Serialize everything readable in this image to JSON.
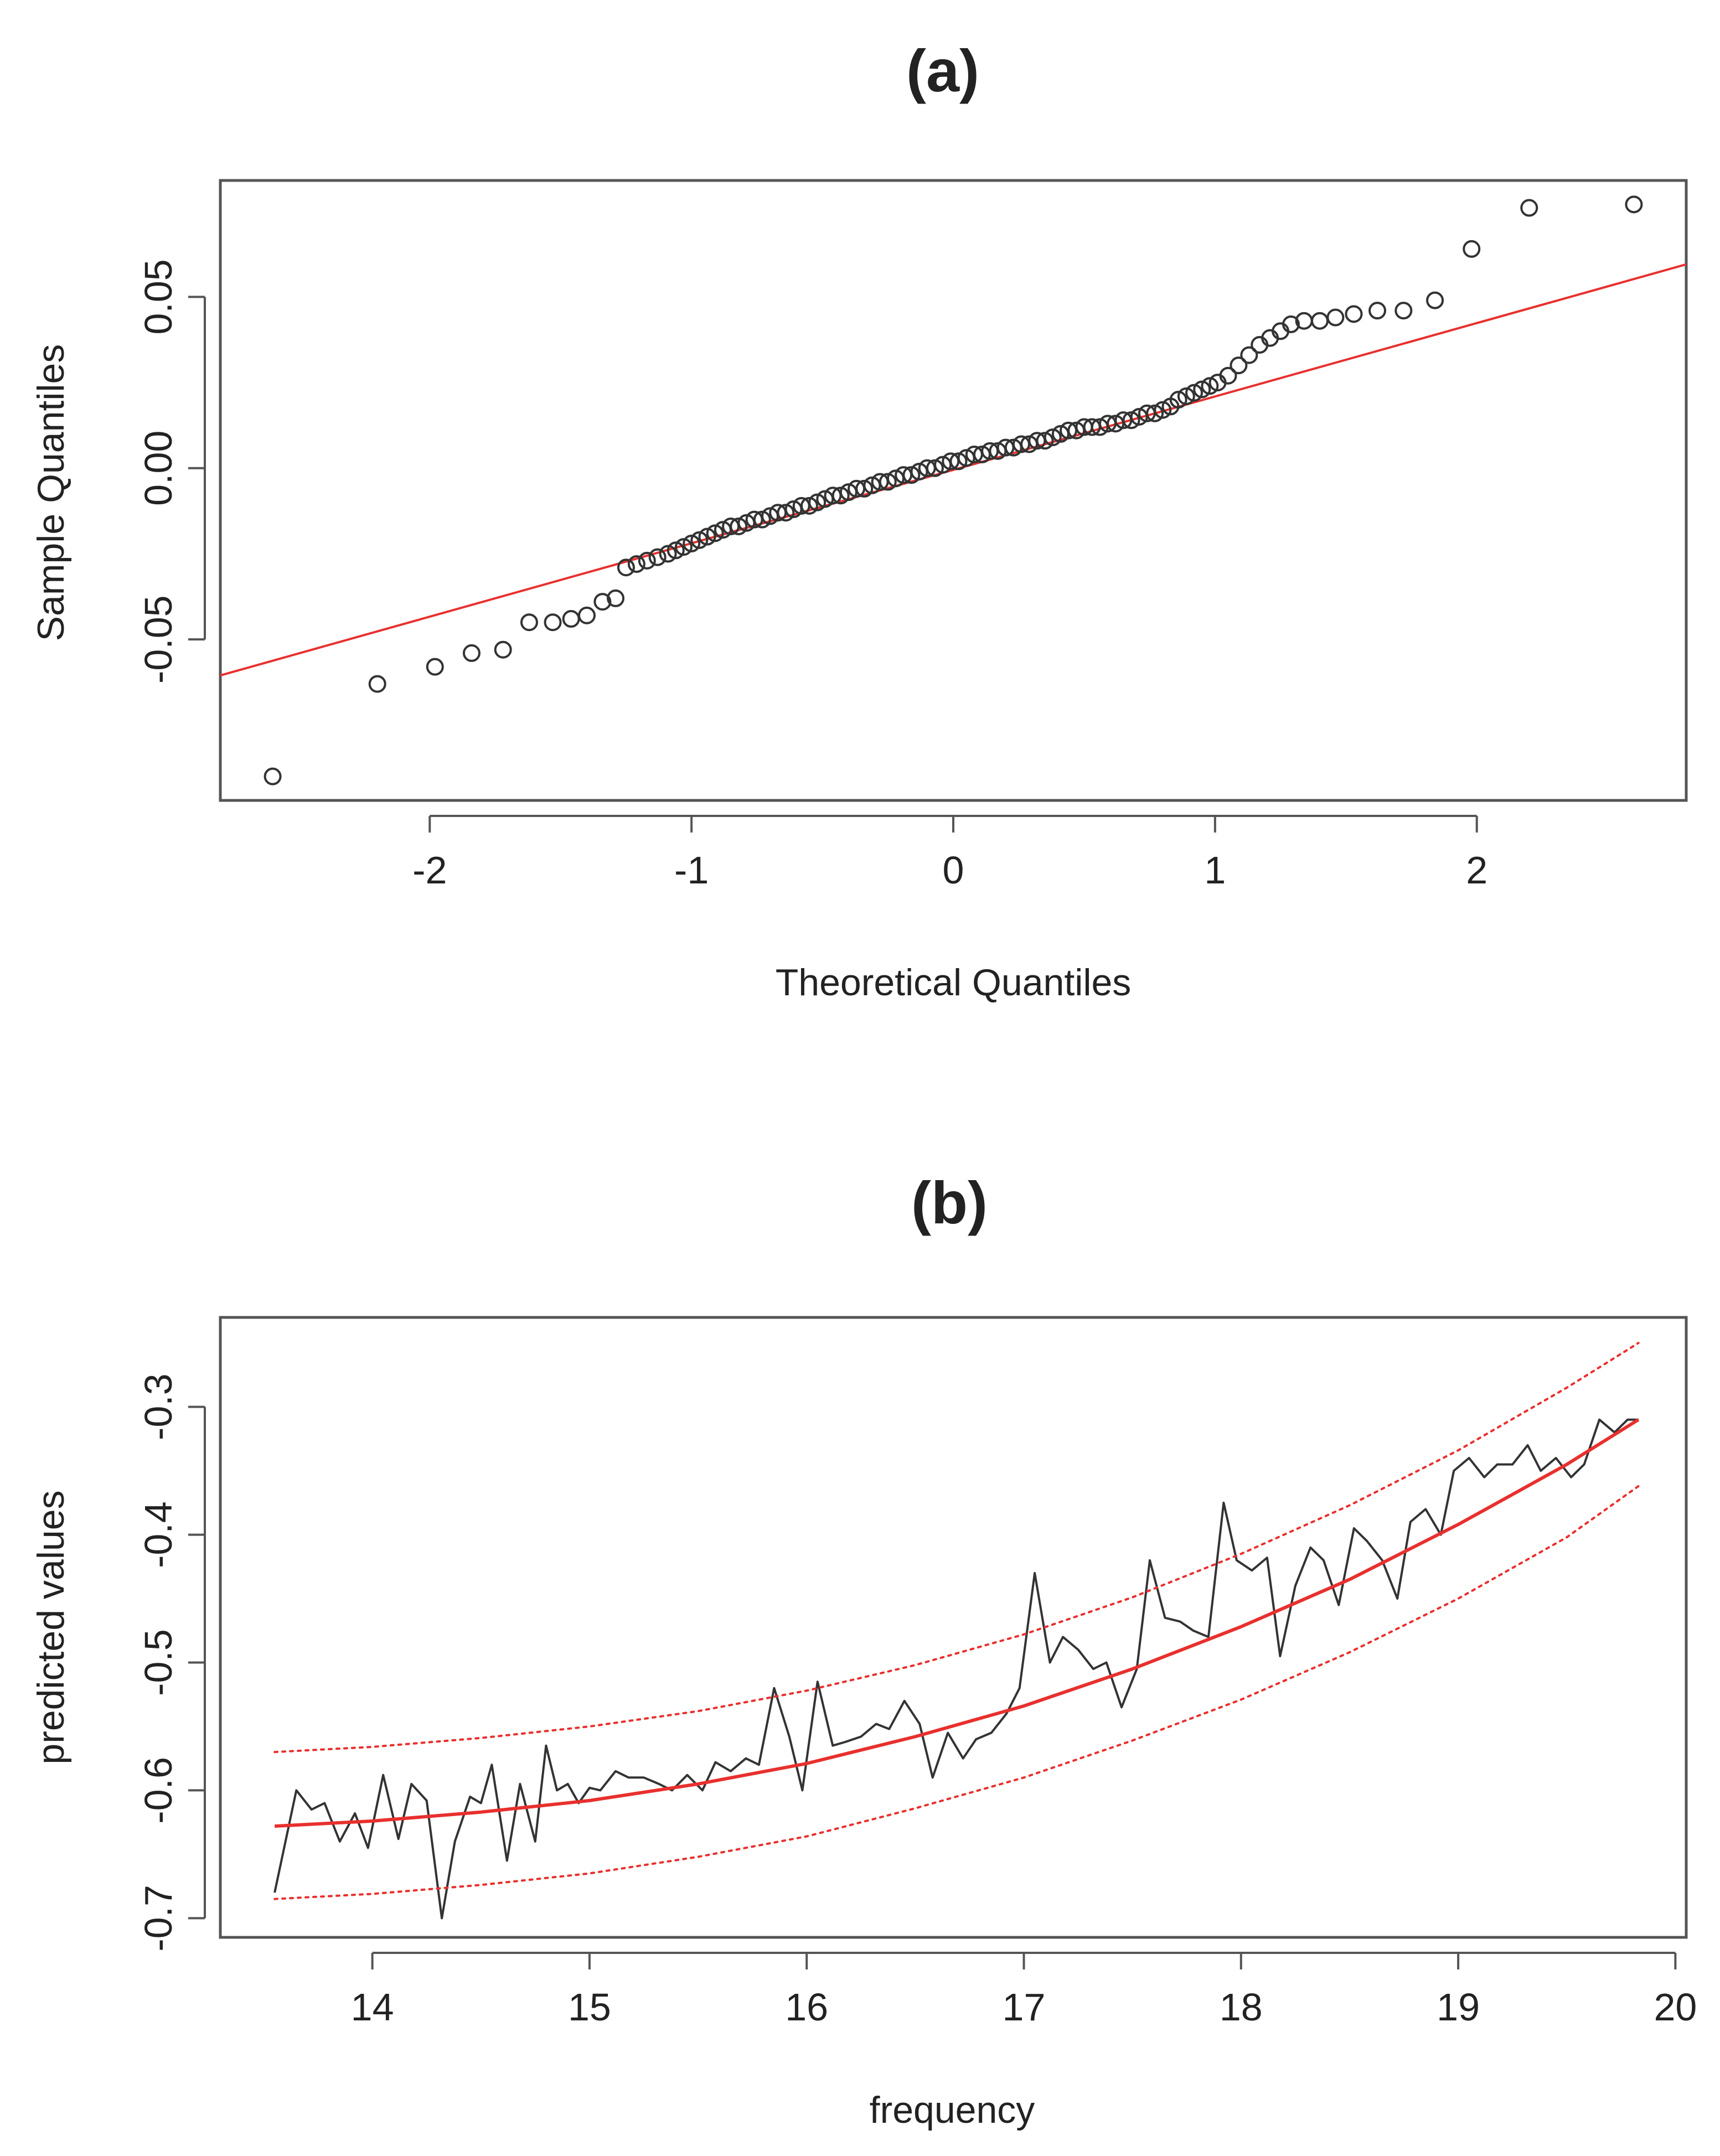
{
  "chart_data": [
    {
      "type": "scatter",
      "panel": "(a)",
      "title": "(a)",
      "xlabel": "Theoretical Quantiles",
      "ylabel": "Sample Quantiles",
      "xlim": [
        -2.8,
        2.8
      ],
      "ylim": [
        -0.097,
        0.084
      ],
      "xticks": [
        -2,
        -1,
        0,
        1,
        2
      ],
      "xtick_labels": [
        "-2",
        "-1",
        "0",
        "1",
        "2"
      ],
      "yticks": [
        -0.05,
        0.0,
        0.05
      ],
      "ytick_labels": [
        "-0.05",
        "0.00",
        "0.05"
      ],
      "grid": false,
      "marker": "open-circle",
      "reference_line": {
        "name": "qqline",
        "color": "#e8302e",
        "x": [
          -2.8,
          2.8
        ],
        "y": [
          -0.0605,
          0.0595
        ]
      },
      "points": {
        "x": [
          -2.6,
          -2.2,
          -1.98,
          -1.84,
          -1.72,
          -1.62,
          -1.53,
          -1.46,
          -1.4,
          -1.34,
          -1.29,
          -1.25,
          -1.21,
          -1.17,
          -1.13,
          -1.09,
          -1.06,
          -1.03,
          -1.0,
          -0.97,
          -0.94,
          -0.91,
          -0.88,
          -0.85,
          -0.82,
          -0.79,
          -0.76,
          -0.73,
          -0.7,
          -0.67,
          -0.64,
          -0.61,
          -0.58,
          -0.55,
          -0.52,
          -0.49,
          -0.46,
          -0.43,
          -0.4,
          -0.37,
          -0.34,
          -0.31,
          -0.28,
          -0.25,
          -0.22,
          -0.19,
          -0.16,
          -0.13,
          -0.1,
          -0.07,
          -0.04,
          -0.01,
          0.02,
          0.05,
          0.08,
          0.11,
          0.14,
          0.17,
          0.2,
          0.23,
          0.26,
          0.29,
          0.32,
          0.35,
          0.38,
          0.41,
          0.44,
          0.47,
          0.5,
          0.53,
          0.56,
          0.59,
          0.62,
          0.65,
          0.68,
          0.71,
          0.74,
          0.77,
          0.8,
          0.83,
          0.86,
          0.89,
          0.92,
          0.95,
          0.98,
          1.01,
          1.05,
          1.09,
          1.13,
          1.17,
          1.21,
          1.25,
          1.29,
          1.34,
          1.4,
          1.46,
          1.53,
          1.62,
          1.72,
          1.84,
          1.98,
          2.2,
          2.6
        ],
        "y": [
          -0.09,
          -0.063,
          -0.058,
          -0.054,
          -0.053,
          -0.045,
          -0.045,
          -0.044,
          -0.043,
          -0.039,
          -0.038,
          -0.029,
          -0.028,
          -0.027,
          -0.026,
          -0.025,
          -0.024,
          -0.023,
          -0.022,
          -0.021,
          -0.02,
          -0.019,
          -0.018,
          -0.017,
          -0.017,
          -0.016,
          -0.015,
          -0.015,
          -0.014,
          -0.013,
          -0.013,
          -0.012,
          -0.011,
          -0.011,
          -0.01,
          -0.009,
          -0.008,
          -0.008,
          -0.007,
          -0.006,
          -0.006,
          -0.005,
          -0.004,
          -0.004,
          -0.003,
          -0.002,
          -0.002,
          -0.001,
          0.0,
          0.0,
          0.001,
          0.002,
          0.002,
          0.003,
          0.004,
          0.004,
          0.005,
          0.005,
          0.006,
          0.006,
          0.007,
          0.007,
          0.008,
          0.008,
          0.009,
          0.01,
          0.011,
          0.011,
          0.012,
          0.012,
          0.012,
          0.013,
          0.013,
          0.014,
          0.014,
          0.015,
          0.016,
          0.016,
          0.017,
          0.018,
          0.02,
          0.021,
          0.022,
          0.023,
          0.024,
          0.025,
          0.027,
          0.03,
          0.033,
          0.036,
          0.038,
          0.04,
          0.042,
          0.043,
          0.043,
          0.044,
          0.045,
          0.046,
          0.046,
          0.049,
          0.064,
          0.076,
          0.077
        ]
      }
    },
    {
      "type": "line",
      "panel": "(b)",
      "title": "(b)",
      "xlabel": "frequency",
      "ylabel": "predicted values",
      "xlim": [
        13.3,
        20.05
      ],
      "ylim": [
        -0.715,
        -0.23
      ],
      "xticks": [
        14,
        15,
        16,
        17,
        18,
        19,
        20
      ],
      "xtick_labels": [
        "14",
        "15",
        "16",
        "17",
        "18",
        "19",
        "20"
      ],
      "yticks": [
        -0.7,
        -0.6,
        -0.5,
        -0.4,
        -0.3
      ],
      "ytick_labels": [
        "-0.7",
        "-0.6",
        "-0.5",
        "-0.4",
        "-0.3"
      ],
      "grid": false,
      "series": [
        {
          "name": "predicted values",
          "color": "#333333",
          "style": "solid",
          "x": [
            13.55,
            13.65,
            13.72,
            13.78,
            13.85,
            13.92,
            13.98,
            14.05,
            14.12,
            14.18,
            14.25,
            14.32,
            14.38,
            14.45,
            14.5,
            14.55,
            14.62,
            14.68,
            14.75,
            14.8,
            14.85,
            14.9,
            14.95,
            15.0,
            15.05,
            15.12,
            15.18,
            15.25,
            15.32,
            15.38,
            15.45,
            15.52,
            15.58,
            15.65,
            15.72,
            15.78,
            15.85,
            15.92,
            15.98,
            16.05,
            16.12,
            16.18,
            16.25,
            16.32,
            16.38,
            16.45,
            16.52,
            16.58,
            16.65,
            16.72,
            16.78,
            16.85,
            16.92,
            16.98,
            17.05,
            17.12,
            17.18,
            17.25,
            17.32,
            17.38,
            17.45,
            17.52,
            17.58,
            17.65,
            17.72,
            17.78,
            17.85,
            17.92,
            17.98,
            18.05,
            18.12,
            18.18,
            18.25,
            18.32,
            18.38,
            18.45,
            18.52,
            18.58,
            18.65,
            18.72,
            18.78,
            18.85,
            18.92,
            18.98,
            19.05,
            19.12,
            19.18,
            19.25,
            19.32,
            19.38,
            19.45,
            19.52,
            19.58,
            19.65,
            19.72,
            19.78,
            19.83
          ],
          "y": [
            -0.68,
            -0.6,
            -0.615,
            -0.61,
            -0.64,
            -0.618,
            -0.645,
            -0.588,
            -0.638,
            -0.595,
            -0.608,
            -0.7,
            -0.64,
            -0.605,
            -0.61,
            -0.58,
            -0.655,
            -0.595,
            -0.64,
            -0.565,
            -0.6,
            -0.595,
            -0.61,
            -0.598,
            -0.6,
            -0.585,
            -0.59,
            -0.59,
            -0.595,
            -0.6,
            -0.588,
            -0.6,
            -0.578,
            -0.585,
            -0.575,
            -0.58,
            -0.52,
            -0.558,
            -0.6,
            -0.515,
            -0.565,
            -0.562,
            -0.558,
            -0.548,
            -0.552,
            -0.53,
            -0.548,
            -0.59,
            -0.555,
            -0.575,
            -0.56,
            -0.555,
            -0.54,
            -0.52,
            -0.43,
            -0.5,
            -0.48,
            -0.49,
            -0.505,
            -0.5,
            -0.535,
            -0.505,
            -0.42,
            -0.465,
            -0.468,
            -0.475,
            -0.48,
            -0.375,
            -0.42,
            -0.428,
            -0.418,
            -0.495,
            -0.44,
            -0.41,
            -0.42,
            -0.455,
            -0.395,
            -0.405,
            -0.42,
            -0.45,
            -0.39,
            -0.38,
            -0.4,
            -0.35,
            -0.34,
            -0.355,
            -0.345,
            -0.345,
            -0.33,
            -0.35,
            -0.34,
            -0.355,
            -0.345,
            -0.31,
            -0.32,
            -0.31,
            -0.31
          ]
        },
        {
          "name": "fitted trend",
          "color": "#e8302e",
          "style": "solid",
          "x": [
            13.55,
            14.0,
            14.5,
            15.0,
            15.5,
            16.0,
            16.5,
            17.0,
            17.5,
            18.0,
            18.5,
            19.0,
            19.5,
            19.83
          ],
          "y": [
            -0.628,
            -0.624,
            -0.617,
            -0.608,
            -0.595,
            -0.579,
            -0.558,
            -0.534,
            -0.505,
            -0.472,
            -0.435,
            -0.392,
            -0.345,
            -0.31
          ]
        },
        {
          "name": "upper bound",
          "color": "#e8302e",
          "style": "dotted",
          "x": [
            13.55,
            14.0,
            14.5,
            15.0,
            15.5,
            16.0,
            16.5,
            17.0,
            17.5,
            18.0,
            18.5,
            19.0,
            19.5,
            19.83
          ],
          "y": [
            -0.57,
            -0.566,
            -0.559,
            -0.55,
            -0.538,
            -0.522,
            -0.502,
            -0.478,
            -0.449,
            -0.415,
            -0.377,
            -0.334,
            -0.285,
            -0.25
          ]
        },
        {
          "name": "lower bound",
          "color": "#e8302e",
          "style": "dotted",
          "x": [
            13.55,
            14.0,
            14.5,
            15.0,
            15.5,
            16.0,
            16.5,
            17.0,
            17.5,
            18.0,
            18.5,
            19.0,
            19.5,
            19.83
          ],
          "y": [
            -0.685,
            -0.681,
            -0.674,
            -0.665,
            -0.652,
            -0.636,
            -0.614,
            -0.59,
            -0.561,
            -0.529,
            -0.492,
            -0.45,
            -0.402,
            -0.362
          ]
        }
      ]
    }
  ]
}
